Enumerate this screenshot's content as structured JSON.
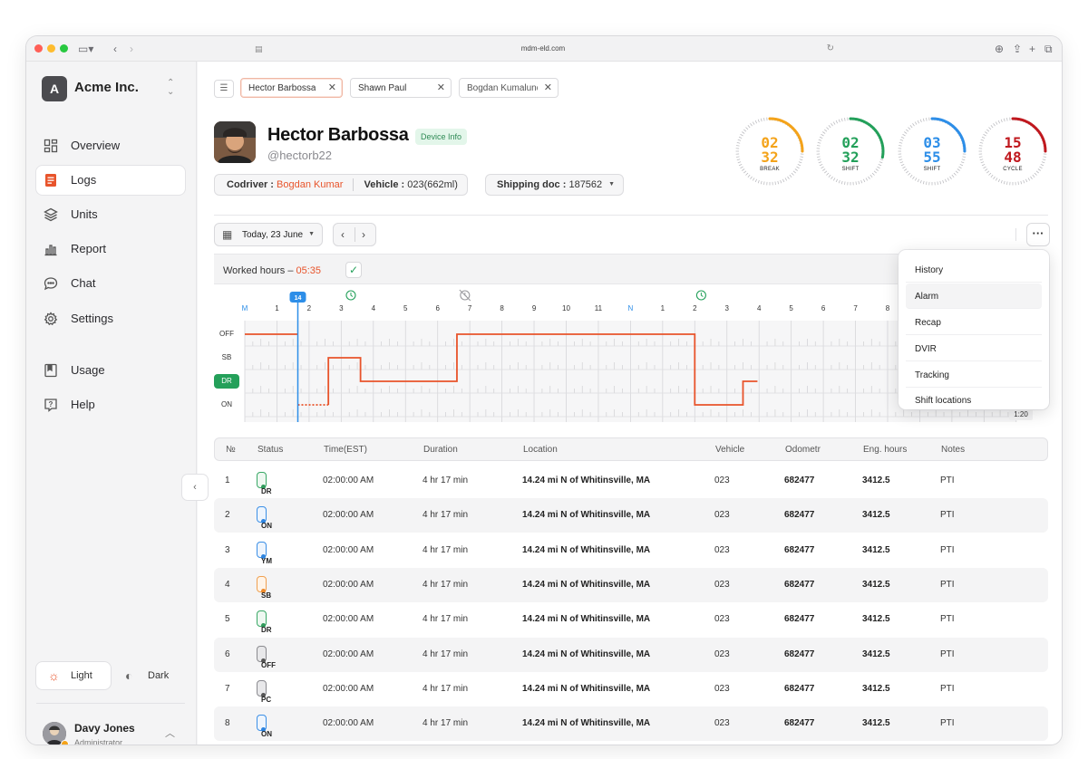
{
  "browser": {
    "url": "mdm-eld.com"
  },
  "sidebar": {
    "brand": {
      "logo_letter": "A",
      "name": "Acme Inc."
    },
    "nav": [
      {
        "label": "Overview",
        "icon": "grid-icon"
      },
      {
        "label": "Logs",
        "icon": "document-icon",
        "active": true
      },
      {
        "label": "Units",
        "icon": "layers-icon"
      },
      {
        "label": "Report",
        "icon": "bar-chart-icon"
      },
      {
        "label": "Chat",
        "icon": "chat-icon"
      },
      {
        "label": "Settings",
        "icon": "gear-icon"
      },
      {
        "label": "Usage",
        "icon": "bookmark-icon"
      },
      {
        "label": "Help",
        "icon": "help-icon"
      }
    ],
    "theme": {
      "light_label": "Light",
      "dark_label": "Dark",
      "selected": "light"
    },
    "user": {
      "name": "Davy Jones",
      "role": "Administrator"
    }
  },
  "tabs": [
    {
      "label": "Hector Barbossa",
      "active": true
    },
    {
      "label": "Shawn Paul"
    },
    {
      "label": "Bogdan Kumalundze"
    }
  ],
  "driver": {
    "name": "Hector Barbossa",
    "handle": "@hectorb22",
    "device_info_label": "Device Info",
    "codriver_label": "Codriver :",
    "codriver_value": "Bogdan Kumar",
    "vehicle_label": "Vehicle :",
    "vehicle_value": "023(662ml)",
    "shipping_label": "Shipping doc :",
    "shipping_value": "187562"
  },
  "gauges": [
    {
      "hours": "02",
      "minutes": "32",
      "label": "BREAK",
      "color": "#f4a31a",
      "fraction": 0.25
    },
    {
      "hours": "02",
      "minutes": "32",
      "label": "SHIFT",
      "color": "#23a05a",
      "fraction": 0.28
    },
    {
      "hours": "03",
      "minutes": "55",
      "label": "SHIFT",
      "color": "#2d8ee8",
      "fraction": 0.25
    },
    {
      "hours": "15",
      "minutes": "48",
      "label": "CYCLE",
      "color": "#c0181e",
      "fraction": 0.25
    }
  ],
  "toolbar": {
    "date_label": "Today, 23 June"
  },
  "graph": {
    "worked_hours_label": "Worked hours",
    "worked_hours_value": "05:35",
    "current_hour_badge": "14",
    "hour_labels": [
      "M",
      "1",
      "2",
      "3",
      "4",
      "5",
      "6",
      "7",
      "8",
      "9",
      "10",
      "11",
      "N",
      "1",
      "2",
      "3",
      "4",
      "5",
      "6",
      "7",
      "8",
      "9",
      "10",
      "11",
      "M"
    ],
    "row_labels": [
      "OFF",
      "SB",
      "DR",
      "ON"
    ],
    "end_time": "1:20",
    "colors": {
      "line": "#e8542b",
      "cursor": "#2d8ee8",
      "midnight": "#2d8ee8"
    }
  },
  "menu": {
    "items": [
      "History",
      "Alarm",
      "Recap",
      "DVIR",
      "Tracking",
      "Shift locations"
    ],
    "hovered": "Alarm"
  },
  "table": {
    "headers": [
      "№",
      "Status",
      "Time(EST)",
      "Duration",
      "Location",
      "Vehicle",
      "Odometr",
      "Eng. hours",
      "Notes"
    ],
    "rows": [
      {
        "no": "1",
        "status": "DR",
        "time": "02:00:00 AM",
        "duration": "4 hr 17 min",
        "location": "14.24 mi N of Whitinsville, MA",
        "vehicle": "023",
        "odometer": "682477",
        "eng_hours": "3412.5",
        "notes": "PTI"
      },
      {
        "no": "2",
        "status": "ON",
        "time": "02:00:00 AM",
        "duration": "4 hr 17 min",
        "location": "14.24 mi N of Whitinsville, MA",
        "vehicle": "023",
        "odometer": "682477",
        "eng_hours": "3412.5",
        "notes": "PTI"
      },
      {
        "no": "3",
        "status": "YM",
        "time": "02:00:00 AM",
        "duration": "4 hr 17 min",
        "location": "14.24 mi N of Whitinsville, MA",
        "vehicle": "023",
        "odometer": "682477",
        "eng_hours": "3412.5",
        "notes": "PTI"
      },
      {
        "no": "4",
        "status": "SB",
        "time": "02:00:00 AM",
        "duration": "4 hr 17 min",
        "location": "14.24 mi N of Whitinsville, MA",
        "vehicle": "023",
        "odometer": "682477",
        "eng_hours": "3412.5",
        "notes": "PTI"
      },
      {
        "no": "5",
        "status": "DR",
        "time": "02:00:00 AM",
        "duration": "4 hr 17 min",
        "location": "14.24 mi N of Whitinsville, MA",
        "vehicle": "023",
        "odometer": "682477",
        "eng_hours": "3412.5",
        "notes": "PTI"
      },
      {
        "no": "6",
        "status": "OFF",
        "time": "02:00:00 AM",
        "duration": "4 hr 17 min",
        "location": "14.24 mi N of Whitinsville, MA",
        "vehicle": "023",
        "odometer": "682477",
        "eng_hours": "3412.5",
        "notes": "PTI"
      },
      {
        "no": "7",
        "status": "PC",
        "time": "02:00:00 AM",
        "duration": "4 hr 17 min",
        "location": "14.24 mi N of Whitinsville, MA",
        "vehicle": "023",
        "odometer": "682477",
        "eng_hours": "3412.5",
        "notes": "PTI"
      },
      {
        "no": "8",
        "status": "ON",
        "time": "02:00:00 AM",
        "duration": "4 hr 17 min",
        "location": "14.24 mi N of Whitinsville, MA",
        "vehicle": "023",
        "odometer": "682477",
        "eng_hours": "3412.5",
        "notes": "PTI"
      }
    ]
  }
}
